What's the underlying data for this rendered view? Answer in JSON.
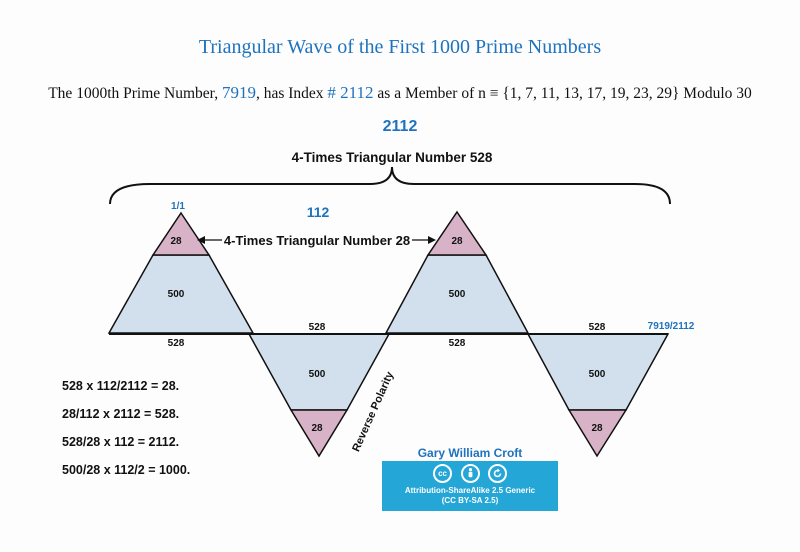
{
  "title": "Triangular Wave of the First 1000 Prime Numbers",
  "subtitle": {
    "prefix": "The 1000th Prime Number,",
    "prime": "7919",
    "middle": ", has Index",
    "index": "# 2112",
    "suffix": "as a Member of n ≡ {1, 7, 11, 13, 17, 19, 23, 29} Modulo 30"
  },
  "top_index": "2112",
  "brace_label": "4-Times Triangular Number 528",
  "sub_index": "112",
  "start_label": "1/1",
  "end_label": "7919/2112",
  "small_triangle_label": "4-Times Triangular Number 28",
  "reverse_label": "Reverse Polarity",
  "segments": {
    "tip": "28",
    "body": "500",
    "base": "528"
  },
  "equations": [
    "528 x 112/2112 = 28.",
    "28/112 x 2112 = 528.",
    "528/28 x 112 = 2112.",
    "500/28 x 112/2 = 1000."
  ],
  "author": "Gary William Croft",
  "license": {
    "icons": [
      "cc",
      "by",
      "sa"
    ],
    "name": "Attribution-ShareAlike 2.5 Generic",
    "code": "(CC BY-SA 2.5)"
  },
  "colors": {
    "title_blue": "#1e73be",
    "triangle_fill": "#d2e0ee",
    "tip_fill": "#d8b2c6",
    "license_bg": "#24a6d6"
  }
}
